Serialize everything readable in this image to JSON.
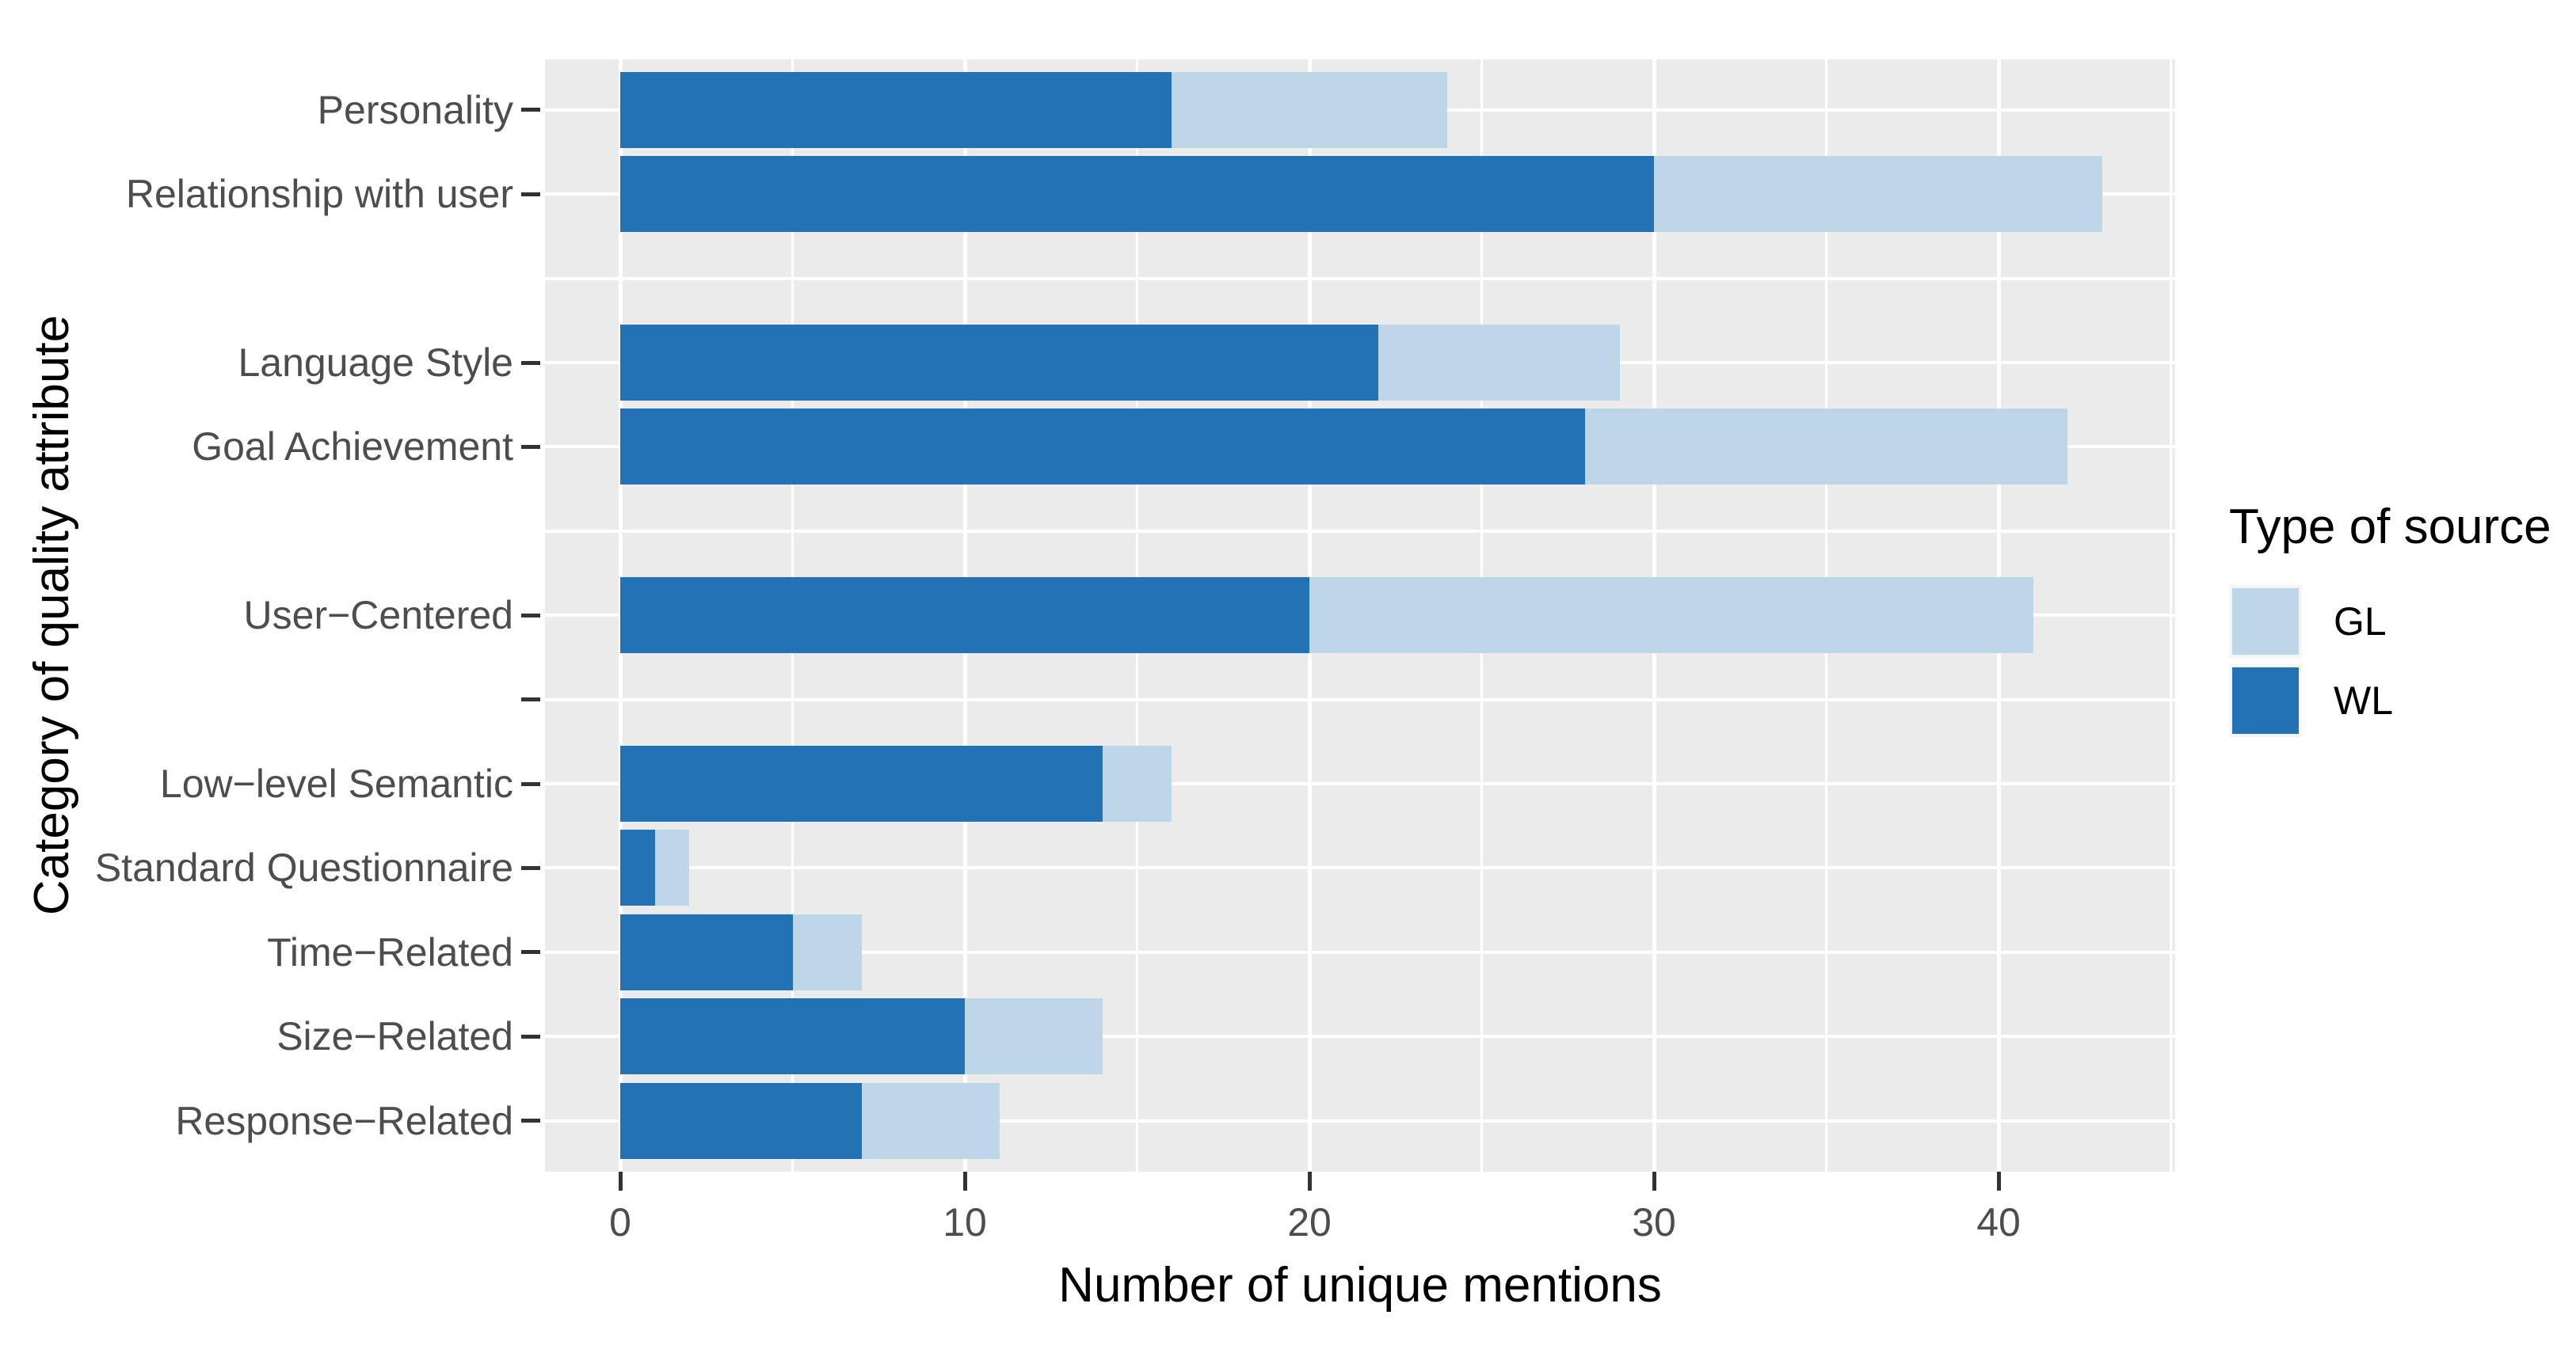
{
  "figure": {
    "x_axis": {
      "title": "Number of unique mentions",
      "major_ticks": [
        0,
        10,
        20,
        30,
        40
      ],
      "minor_ticks": [
        5,
        15,
        25,
        35,
        45
      ],
      "range_max": 45
    },
    "y_axis": {
      "title": "Category of quality attribute"
    },
    "legend": {
      "title": "Type of source",
      "entries": [
        {
          "label": "GL",
          "color": "#BDD7E8"
        },
        {
          "label": "WL",
          "color": "#2272B5"
        }
      ]
    },
    "rows": [
      {
        "label": "Personality",
        "tick": true,
        "wl": 16,
        "gl": 8
      },
      {
        "label": "Relationship with user",
        "tick": true,
        "wl": 30,
        "gl": 13
      },
      {
        "label": "",
        "tick": false,
        "wl": null,
        "gl": null
      },
      {
        "label": "Language Style",
        "tick": true,
        "wl": 22,
        "gl": 7
      },
      {
        "label": "Goal Achievement",
        "tick": true,
        "wl": 28,
        "gl": 14
      },
      {
        "label": "",
        "tick": false,
        "wl": null,
        "gl": null
      },
      {
        "label": "User−Centered",
        "tick": true,
        "wl": 20,
        "gl": 21
      },
      {
        "label": "",
        "tick": true,
        "wl": null,
        "gl": null
      },
      {
        "label": "Low−level Semantic",
        "tick": true,
        "wl": 14,
        "gl": 2
      },
      {
        "label": "Standard Questionnaire",
        "tick": true,
        "wl": 1,
        "gl": 1
      },
      {
        "label": "Time−Related",
        "tick": true,
        "wl": 5,
        "gl": 2
      },
      {
        "label": "Size−Related",
        "tick": true,
        "wl": 10,
        "gl": 4
      },
      {
        "label": "Response−Related",
        "tick": true,
        "wl": 7,
        "gl": 4
      }
    ],
    "colors": {
      "wl": "#2272B5",
      "gl": "#BDD7E8",
      "panel_bg": "#EBEBEB",
      "gridline": "#FFFFFF",
      "tick_mark": "#333333",
      "tick_text": "#4D4D4D",
      "title_text": "#000000"
    }
  },
  "chart_data": {
    "type": "bar",
    "orientation": "horizontal",
    "stacked": true,
    "title": "",
    "xlabel": "Number of unique mentions",
    "ylabel": "Category of quality attribute",
    "categories": [
      "Personality",
      "Relationship with user",
      "Language Style",
      "Goal Achievement",
      "User−Centered",
      "Low−level Semantic",
      "Standard Questionnaire",
      "Time−Related",
      "Size−Related",
      "Response−Related"
    ],
    "series": [
      {
        "name": "WL",
        "color": "#2272B5",
        "values": [
          16,
          30,
          22,
          28,
          20,
          14,
          1,
          5,
          10,
          7
        ]
      },
      {
        "name": "GL",
        "color": "#BDD7E8",
        "values": [
          8,
          13,
          7,
          14,
          21,
          2,
          1,
          2,
          4,
          4
        ]
      }
    ],
    "stack_totals": [
      24,
      43,
      29,
      42,
      41,
      16,
      2,
      7,
      14,
      11
    ],
    "xlim": [
      0,
      45
    ],
    "x_ticks": [
      0,
      10,
      20,
      30,
      40
    ],
    "grid": true,
    "legend_title": "Type of source",
    "legend_position": "right"
  }
}
